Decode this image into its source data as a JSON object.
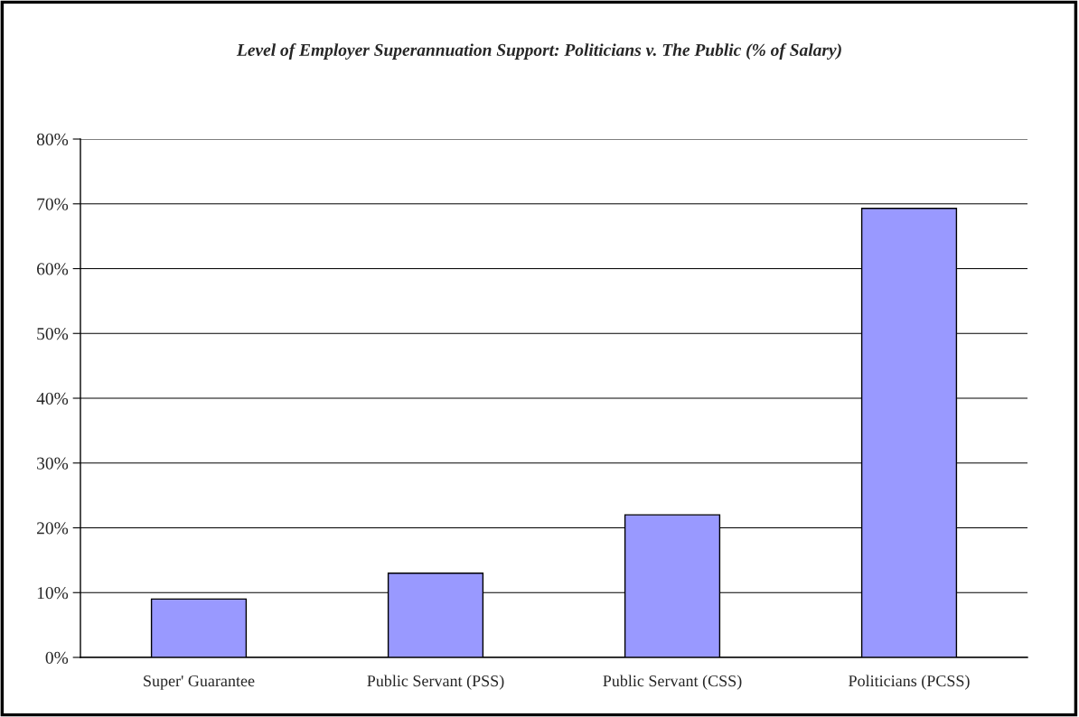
{
  "chart_data": {
    "type": "bar",
    "title": "Level of Employer Superannuation Support: Politicians v. The Public (% of Salary)",
    "categories": [
      "Super' Guarantee",
      "Public Servant (PSS)",
      "Public Servant (CSS)",
      "Politicians (PCSS)"
    ],
    "values": [
      9,
      13,
      22,
      69.3
    ],
    "color": "#9999ff",
    "ylim": [
      0,
      80
    ],
    "yticks": [
      {
        "value": 0,
        "label": "0%"
      },
      {
        "value": 10,
        "label": "10%"
      },
      {
        "value": 20,
        "label": "20%"
      },
      {
        "value": 30,
        "label": "30%"
      },
      {
        "value": 40,
        "label": "40%"
      },
      {
        "value": 50,
        "label": "50%"
      },
      {
        "value": 60,
        "label": "60%"
      },
      {
        "value": 70,
        "label": "70%"
      },
      {
        "value": 80,
        "label": "80%"
      }
    ],
    "grid": "y"
  }
}
